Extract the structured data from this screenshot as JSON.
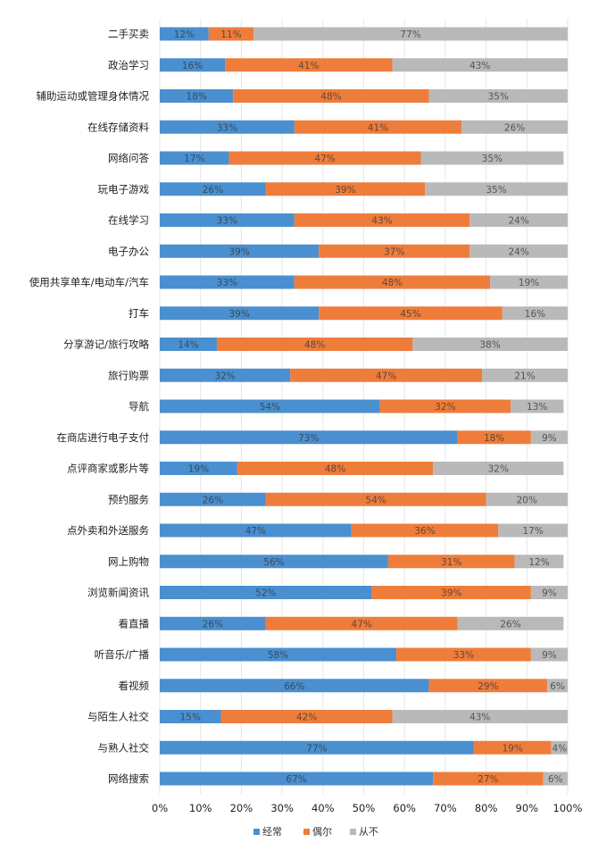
{
  "chart_data": {
    "type": "bar",
    "orientation": "horizontal",
    "stacked": true,
    "percent": true,
    "title": "",
    "xlabel": "",
    "ylabel": "",
    "xlim": [
      0,
      100
    ],
    "x_ticks": [
      "0%",
      "10%",
      "20%",
      "30%",
      "40%",
      "50%",
      "60%",
      "70%",
      "80%",
      "90%",
      "100%"
    ],
    "legend_position": "bottom",
    "categories": [
      "二手买卖",
      "政治学习",
      "辅助运动或管理身体情况",
      "在线存储资料",
      "网络问答",
      "玩电子游戏",
      "在线学习",
      "电子办公",
      "使用共享单车/电动车/汽车",
      "打车",
      "分享游记/旅行攻略",
      "旅行购票",
      "导航",
      "在商店进行电子支付",
      "点评商家或影片等",
      "预约服务",
      "点外卖和外送服务",
      "网上购物",
      "浏览新闻资讯",
      "看直播",
      "听音乐/广播",
      "看视频",
      "与陌生人社交",
      "与熟人社交",
      "网络搜索"
    ],
    "series": [
      {
        "name": "经常",
        "color": "#4a8fcf",
        "values": [
          12,
          16,
          18,
          33,
          17,
          26,
          33,
          39,
          33,
          39,
          14,
          32,
          54,
          73,
          19,
          26,
          47,
          56,
          52,
          26,
          58,
          66,
          15,
          77,
          67
        ],
        "labels": [
          "12%",
          "16%",
          "18%",
          "33%",
          "17%",
          "26%",
          "33%",
          "39%",
          "33%",
          "39%",
          "14%",
          "32%",
          "54%",
          "73%",
          "19%",
          "26%",
          "47%",
          "56%",
          "52%",
          "26%",
          "58%",
          "66%",
          "15%",
          "77%",
          "67%"
        ]
      },
      {
        "name": "偶尔",
        "color": "#ee7d3b",
        "values": [
          11,
          41,
          48,
          41,
          47,
          39,
          43,
          37,
          48,
          45,
          48,
          47,
          32,
          18,
          48,
          54,
          36,
          31,
          39,
          47,
          33,
          29,
          42,
          19,
          27
        ],
        "labels": [
          "11%",
          "41%",
          "48%",
          "41%",
          "47%",
          "39%",
          "43%",
          "37%",
          "48%",
          "45%",
          "48%",
          "47%",
          "32%",
          "18%",
          "48%",
          "54%",
          "36%",
          "31%",
          "39%",
          "47%",
          "33%",
          "29%",
          "42%",
          "19%",
          "27%"
        ]
      },
      {
        "name": "从不",
        "color": "#b9b9b9",
        "values": [
          77,
          43,
          35,
          26,
          35,
          35,
          24,
          24,
          19,
          16,
          38,
          21,
          13,
          9,
          32,
          20,
          17,
          12,
          9,
          26,
          9,
          6,
          43,
          4,
          6
        ],
        "labels": [
          "77%",
          "43%",
          "35%",
          "26%",
          "35%",
          "35%",
          "24%",
          "24%",
          "19%",
          "16%",
          "38%",
          "21%",
          "13%",
          "9%",
          "32%",
          "20%",
          "17%",
          "12%",
          "9%",
          "26%",
          "9%",
          "6%",
          "43%",
          "4%",
          "6%"
        ]
      }
    ]
  }
}
